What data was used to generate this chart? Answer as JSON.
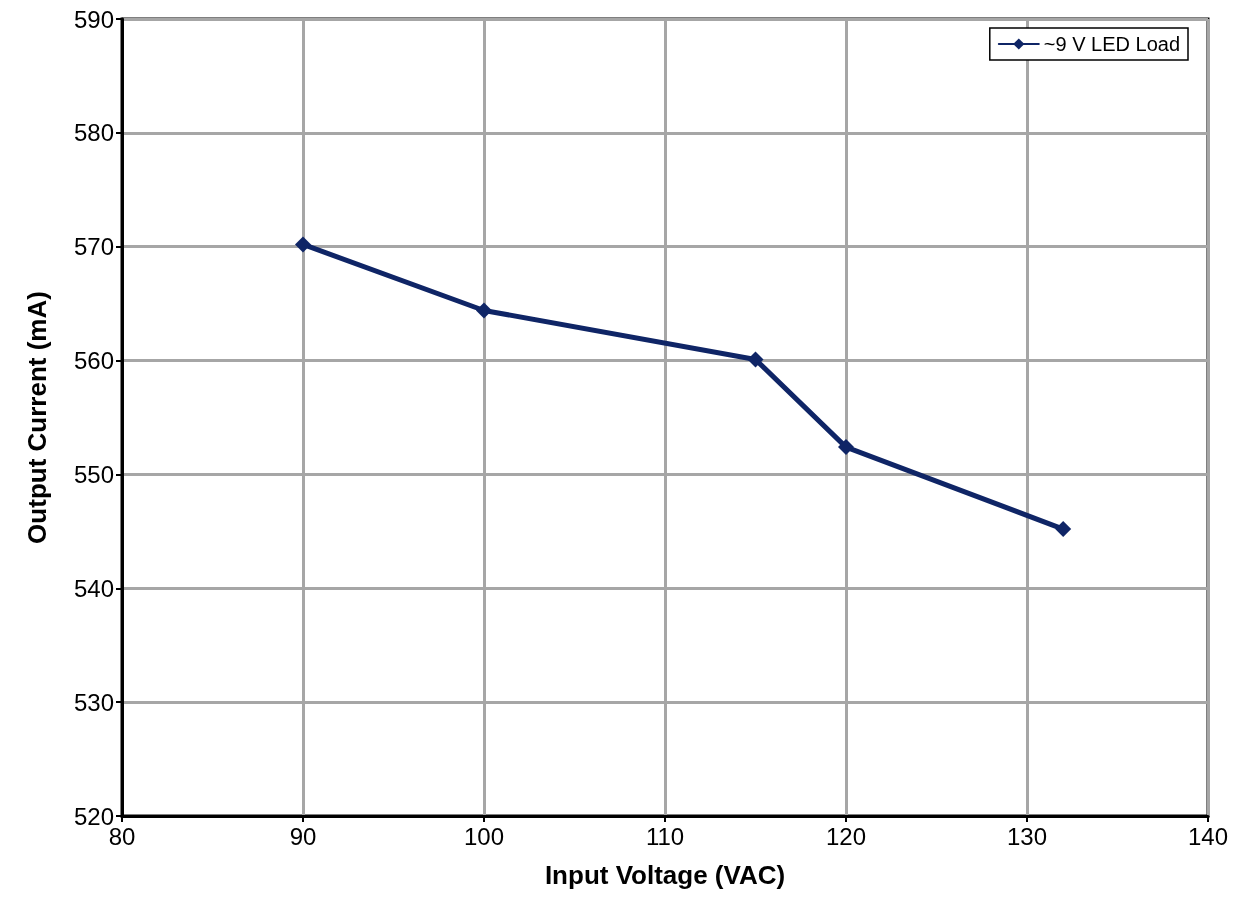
{
  "chart_data": {
    "type": "line",
    "xlabel": "Input Voltage (VAC)",
    "ylabel": "Output Current (mA)",
    "x": [
      90,
      100,
      115,
      120,
      132
    ],
    "series": [
      {
        "name": "~9 V LED Load",
        "color": "#0f2566",
        "values": [
          570.2,
          564.4,
          560.1,
          552.4,
          545.2
        ]
      }
    ],
    "xlim": [
      80,
      140
    ],
    "xticks": [
      80,
      90,
      100,
      110,
      120,
      130,
      140
    ],
    "ylim": [
      520,
      590
    ],
    "yticks": [
      520,
      530,
      540,
      550,
      560,
      570,
      580,
      590
    ],
    "grid": true,
    "legend": "top right",
    "marker": "diamond",
    "line_style": "solid"
  }
}
